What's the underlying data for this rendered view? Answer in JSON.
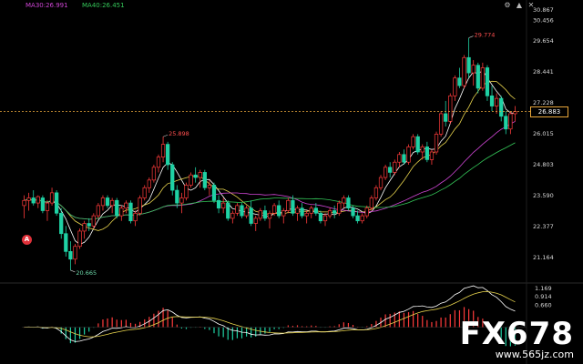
{
  "legend": {
    "ma30": "MA30:26.991",
    "ma40": "MA40:26.451",
    "colors": {
      "ma30": "#d046d6",
      "ma40": "#34c759"
    }
  },
  "toolbar": {
    "settings_icon": "gear-icon",
    "up_icon": "arrow-up-icon",
    "close_icon": "close-icon"
  },
  "watermark": {
    "logo": "FX678",
    "url": "www.565jz.com"
  },
  "marker": {
    "label": "A"
  },
  "chart_data": {
    "type": "candlestick",
    "price_axis": {
      "ticks": [
        30.867,
        30.456,
        29.654,
        28.441,
        27.228,
        26.015,
        24.803,
        23.59,
        22.377,
        21.164
      ],
      "tick_labels": [
        "30.867",
        "30.456",
        "29.654",
        "28.441",
        "27.228",
        "26.015",
        "24.803",
        "23.590",
        "22.377",
        "21.164"
      ],
      "range": [
        20.2,
        30.9
      ]
    },
    "last_price": 26.883,
    "last_price_label": "26.883",
    "annotations": [
      {
        "label": "29.774",
        "value": 29.774,
        "kind": "high"
      },
      {
        "label": "25.898",
        "value": 25.898,
        "kind": "high"
      },
      {
        "label": "20.665",
        "value": 20.665,
        "kind": "low"
      }
    ],
    "indicator_axis": {
      "tick_labels": [
        "1.169",
        "0.914",
        "0.660"
      ],
      "ticks": [
        1.169,
        0.914,
        0.66
      ],
      "range": [
        -1.0,
        1.25
      ]
    },
    "ohlc": [
      [
        23.2,
        23.6,
        22.7,
        23.4
      ],
      [
        23.4,
        23.7,
        23.0,
        23.5
      ],
      [
        23.5,
        23.8,
        23.2,
        23.3
      ],
      [
        23.3,
        23.6,
        23.1,
        23.55
      ],
      [
        23.5,
        23.6,
        22.9,
        23.0
      ],
      [
        23.0,
        23.4,
        22.6,
        23.3
      ],
      [
        23.3,
        23.9,
        23.2,
        23.7
      ],
      [
        23.7,
        23.8,
        22.8,
        22.9
      ],
      [
        22.9,
        23.1,
        21.9,
        22.1
      ],
      [
        22.1,
        22.4,
        21.2,
        21.4
      ],
      [
        21.4,
        21.8,
        20.66,
        21.1
      ],
      [
        21.1,
        21.7,
        20.9,
        21.6
      ],
      [
        21.6,
        22.3,
        21.5,
        22.2
      ],
      [
        22.2,
        22.6,
        21.9,
        22.5
      ],
      [
        22.5,
        22.7,
        22.2,
        22.4
      ],
      [
        22.4,
        22.9,
        22.3,
        22.8
      ],
      [
        22.8,
        23.3,
        22.7,
        23.2
      ],
      [
        23.2,
        23.6,
        23.0,
        23.5
      ],
      [
        23.5,
        23.6,
        23.1,
        23.2
      ],
      [
        23.2,
        23.5,
        22.9,
        23.4
      ],
      [
        23.4,
        23.5,
        22.7,
        22.8
      ],
      [
        22.8,
        23.2,
        22.6,
        23.1
      ],
      [
        23.1,
        23.4,
        22.9,
        23.3
      ],
      [
        23.3,
        23.4,
        22.5,
        22.6
      ],
      [
        22.6,
        23.0,
        22.4,
        22.9
      ],
      [
        22.9,
        23.6,
        22.8,
        23.5
      ],
      [
        23.5,
        24.0,
        23.4,
        23.9
      ],
      [
        23.9,
        24.3,
        23.7,
        24.2
      ],
      [
        24.2,
        24.8,
        24.1,
        24.7
      ],
      [
        24.7,
        25.2,
        24.5,
        25.1
      ],
      [
        25.1,
        25.9,
        24.9,
        25.6
      ],
      [
        25.6,
        25.7,
        24.6,
        24.8
      ],
      [
        24.8,
        24.9,
        23.6,
        23.8
      ],
      [
        23.8,
        24.0,
        23.1,
        23.3
      ],
      [
        23.3,
        23.7,
        22.9,
        23.5
      ],
      [
        23.5,
        24.1,
        23.4,
        24.0
      ],
      [
        24.0,
        24.5,
        23.9,
        24.4
      ],
      [
        24.4,
        24.7,
        24.1,
        24.3
      ],
      [
        24.3,
        24.6,
        23.9,
        24.5
      ],
      [
        24.5,
        24.6,
        23.8,
        23.9
      ],
      [
        23.9,
        24.2,
        23.6,
        24.0
      ],
      [
        24.0,
        24.1,
        23.3,
        23.4
      ],
      [
        23.4,
        23.6,
        22.9,
        23.1
      ],
      [
        23.1,
        23.5,
        22.9,
        23.3
      ],
      [
        23.3,
        23.4,
        22.6,
        22.7
      ],
      [
        22.7,
        23.0,
        22.5,
        22.9
      ],
      [
        22.9,
        23.3,
        22.8,
        23.2
      ],
      [
        23.2,
        23.3,
        22.7,
        22.8
      ],
      [
        22.8,
        23.2,
        22.7,
        23.1
      ],
      [
        23.1,
        23.4,
        22.4,
        22.5
      ],
      [
        22.5,
        22.8,
        22.2,
        22.7
      ],
      [
        22.7,
        23.1,
        22.6,
        23.0
      ],
      [
        23.0,
        23.2,
        22.6,
        22.7
      ],
      [
        22.7,
        23.0,
        22.3,
        22.9
      ],
      [
        22.9,
        23.3,
        22.8,
        23.2
      ],
      [
        23.2,
        23.4,
        22.7,
        22.8
      ],
      [
        22.8,
        23.1,
        22.5,
        23.0
      ],
      [
        23.0,
        23.5,
        22.9,
        23.4
      ],
      [
        23.4,
        23.6,
        22.8,
        22.9
      ],
      [
        22.9,
        23.2,
        22.6,
        23.1
      ],
      [
        23.1,
        23.3,
        22.7,
        22.8
      ],
      [
        22.8,
        23.0,
        22.5,
        22.9
      ],
      [
        22.9,
        23.2,
        22.7,
        23.1
      ],
      [
        23.1,
        23.3,
        22.8,
        22.9
      ],
      [
        22.9,
        23.0,
        22.5,
        22.6
      ],
      [
        22.6,
        22.9,
        22.4,
        22.8
      ],
      [
        22.8,
        23.1,
        22.7,
        23.0
      ],
      [
        23.0,
        23.2,
        22.7,
        22.9
      ],
      [
        22.9,
        23.4,
        22.8,
        23.3
      ],
      [
        23.3,
        23.6,
        23.1,
        23.5
      ],
      [
        23.5,
        23.6,
        23.0,
        23.1
      ],
      [
        23.1,
        23.2,
        22.7,
        22.8
      ],
      [
        22.8,
        23.0,
        22.5,
        22.6
      ],
      [
        22.6,
        22.9,
        22.5,
        22.8
      ],
      [
        22.8,
        23.2,
        22.7,
        23.1
      ],
      [
        23.1,
        23.6,
        23.0,
        23.5
      ],
      [
        23.5,
        24.0,
        23.4,
        23.9
      ],
      [
        23.9,
        24.4,
        23.8,
        24.3
      ],
      [
        24.3,
        24.8,
        24.2,
        24.7
      ],
      [
        24.7,
        24.9,
        24.3,
        24.5
      ],
      [
        24.5,
        25.0,
        24.4,
        24.9
      ],
      [
        24.9,
        25.3,
        24.7,
        25.2
      ],
      [
        25.2,
        25.4,
        24.8,
        24.9
      ],
      [
        24.9,
        25.6,
        24.8,
        25.5
      ],
      [
        25.5,
        26.0,
        25.4,
        25.9
      ],
      [
        25.9,
        26.0,
        25.2,
        25.3
      ],
      [
        25.3,
        25.6,
        25.0,
        25.5
      ],
      [
        25.5,
        25.7,
        24.9,
        25.0
      ],
      [
        25.0,
        25.4,
        24.8,
        25.3
      ],
      [
        25.3,
        26.1,
        25.2,
        26.0
      ],
      [
        26.0,
        26.9,
        25.9,
        26.8
      ],
      [
        26.8,
        27.3,
        26.3,
        26.5
      ],
      [
        26.5,
        27.6,
        26.4,
        27.5
      ],
      [
        27.5,
        28.3,
        27.3,
        28.2
      ],
      [
        28.2,
        28.6,
        27.8,
        27.9
      ],
      [
        27.9,
        29.1,
        27.8,
        29.0
      ],
      [
        29.0,
        29.77,
        28.2,
        28.4
      ],
      [
        28.4,
        28.9,
        27.9,
        28.7
      ],
      [
        28.7,
        28.8,
        27.6,
        27.8
      ],
      [
        27.8,
        28.8,
        27.7,
        28.6
      ],
      [
        28.6,
        28.7,
        27.3,
        27.5
      ],
      [
        27.5,
        27.9,
        26.9,
        27.1
      ],
      [
        27.1,
        27.6,
        26.8,
        27.4
      ],
      [
        27.4,
        27.5,
        26.5,
        26.7
      ],
      [
        26.7,
        26.9,
        26.0,
        26.2
      ],
      [
        26.2,
        26.9,
        26.0,
        26.8
      ],
      [
        26.8,
        27.1,
        26.5,
        26.883
      ]
    ]
  }
}
